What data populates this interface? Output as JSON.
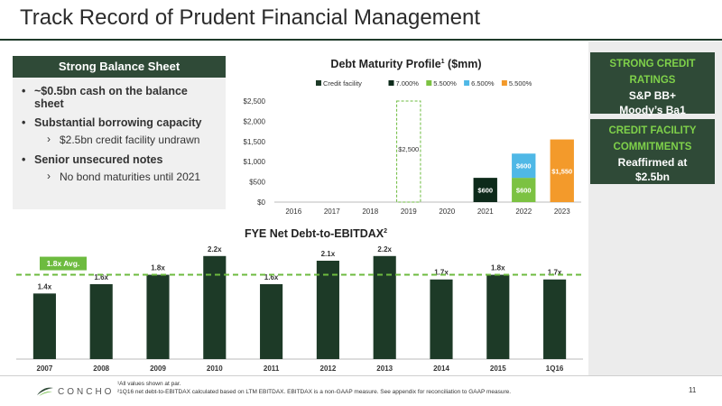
{
  "page": {
    "title": "Track Record of Prudent Financial Management",
    "page_number": "11",
    "logo_text": "CONCHO"
  },
  "balance_sheet": {
    "header": "Strong Balance Sheet",
    "bullets": [
      {
        "text": "~$0.5bn cash on the balance sheet"
      },
      {
        "text": "Substantial borrowing capacity",
        "sub": "$2.5bn credit facility undrawn"
      },
      {
        "text": "Senior unsecured notes",
        "sub": "No bond maturities until 2021"
      }
    ]
  },
  "sidebar": {
    "ratings": {
      "heading": "STRONG CREDIT RATINGS",
      "line1": "S&P BB+",
      "line2": "Moody’s Ba1"
    },
    "commitments": {
      "heading": "CREDIT FACILITY COMMITMENTS",
      "line1": "Reaffirmed at",
      "line2": "$2.5bn"
    }
  },
  "footnotes": [
    "¹All values shown at par.",
    "²1Q16 net debt-to-EBITDAX calculated based on LTM EBITDAX. EBITDAX is a non-GAAP measure.  See appendix for reconciliation to GAAP measure."
  ],
  "colors": {
    "dark_green": "#2f4a37",
    "credit_facility": "#1d3a27",
    "s7000": "#0d2a1a",
    "s5500a": "#7cc242",
    "s6500": "#4fb8e6",
    "s5500b": "#f39a2b",
    "ebitdax_bar": "#1d3a27",
    "avg_line": "#6dbb3f"
  },
  "chart_data": [
    {
      "type": "bar",
      "stacked": true,
      "title": "Debt Maturity Profile",
      "title_sup": "1",
      "title_suffix": " ($mm)",
      "categories": [
        "2016",
        "2017",
        "2018",
        "2019",
        "2020",
        "2021",
        "2022",
        "2023"
      ],
      "yticks": [
        "$0",
        "$500",
        "$1,000",
        "$1,500",
        "$2,000",
        "$2,500"
      ],
      "ylim": [
        0,
        2500
      ],
      "grid": false,
      "legend_position": "top",
      "series": [
        {
          "name": "Credit facility",
          "values": [
            0,
            0,
            0,
            2500,
            0,
            0,
            0,
            0
          ],
          "labels": [
            "",
            "",
            "",
            "$2,500",
            "",
            "",
            "",
            ""
          ],
          "style": "dashed-outline"
        },
        {
          "name": "7.000%",
          "values": [
            0,
            0,
            0,
            0,
            0,
            600,
            0,
            0
          ],
          "labels": [
            "",
            "",
            "",
            "",
            "",
            "$600",
            "",
            ""
          ]
        },
        {
          "name": "5.500%",
          "values": [
            0,
            0,
            0,
            0,
            0,
            0,
            600,
            0
          ],
          "labels": [
            "",
            "",
            "",
            "",
            "",
            "",
            "$600",
            ""
          ]
        },
        {
          "name": "6.500%",
          "values": [
            0,
            0,
            0,
            0,
            0,
            0,
            600,
            0
          ],
          "labels": [
            "",
            "",
            "",
            "",
            "",
            "",
            "$600",
            ""
          ]
        },
        {
          "name": "5.500%",
          "values": [
            0,
            0,
            0,
            0,
            0,
            0,
            0,
            1550
          ],
          "labels": [
            "",
            "",
            "",
            "",
            "",
            "",
            "",
            "$1,550"
          ]
        }
      ]
    },
    {
      "type": "bar",
      "title": "FYE Net Debt-to-EBITDAX",
      "title_sup": "2",
      "categories": [
        "2007",
        "2008",
        "2009",
        "2010",
        "2011",
        "2012",
        "2013",
        "2014",
        "2015",
        "1Q16"
      ],
      "values": [
        1.4,
        1.6,
        1.8,
        2.2,
        1.6,
        2.1,
        2.2,
        1.7,
        1.8,
        1.7
      ],
      "labels": [
        "1.4x",
        "1.6x",
        "1.8x",
        "2.2x",
        "1.6x",
        "2.1x",
        "2.2x",
        "1.7x",
        "1.8x",
        "1.7x"
      ],
      "ylim": [
        0,
        2.35
      ],
      "average": 1.8,
      "average_label": "1.8x Avg."
    }
  ]
}
